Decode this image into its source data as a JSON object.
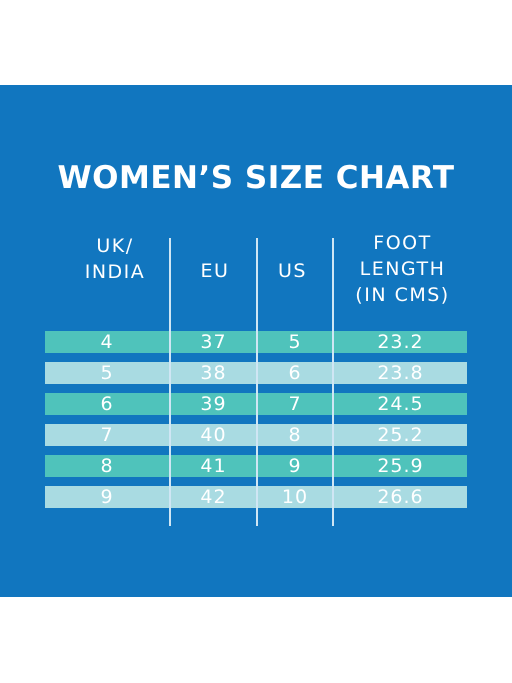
{
  "title": "WOMEN’S SIZE CHART",
  "headers": {
    "uk_india": "UK/\nINDIA",
    "eu": "EU",
    "us": "US",
    "foot_length": "FOOT\nLENGTH\n(IN CMS)"
  },
  "rows": [
    {
      "uk": "4",
      "eu": "37",
      "us": "5",
      "cm": "23.2"
    },
    {
      "uk": "5",
      "eu": "38",
      "us": "6",
      "cm": "23.8"
    },
    {
      "uk": "6",
      "eu": "39",
      "us": "7",
      "cm": "24.5"
    },
    {
      "uk": "7",
      "eu": "40",
      "us": "8",
      "cm": "25.2"
    },
    {
      "uk": "8",
      "eu": "41",
      "us": "9",
      "cm": "25.9"
    },
    {
      "uk": "9",
      "eu": "42",
      "us": "10",
      "cm": "26.6"
    }
  ],
  "colors": {
    "background": "#1176bf",
    "row_dark": "#4fc3bb",
    "row_light": "#a9dbe2",
    "text": "#ffffff"
  }
}
